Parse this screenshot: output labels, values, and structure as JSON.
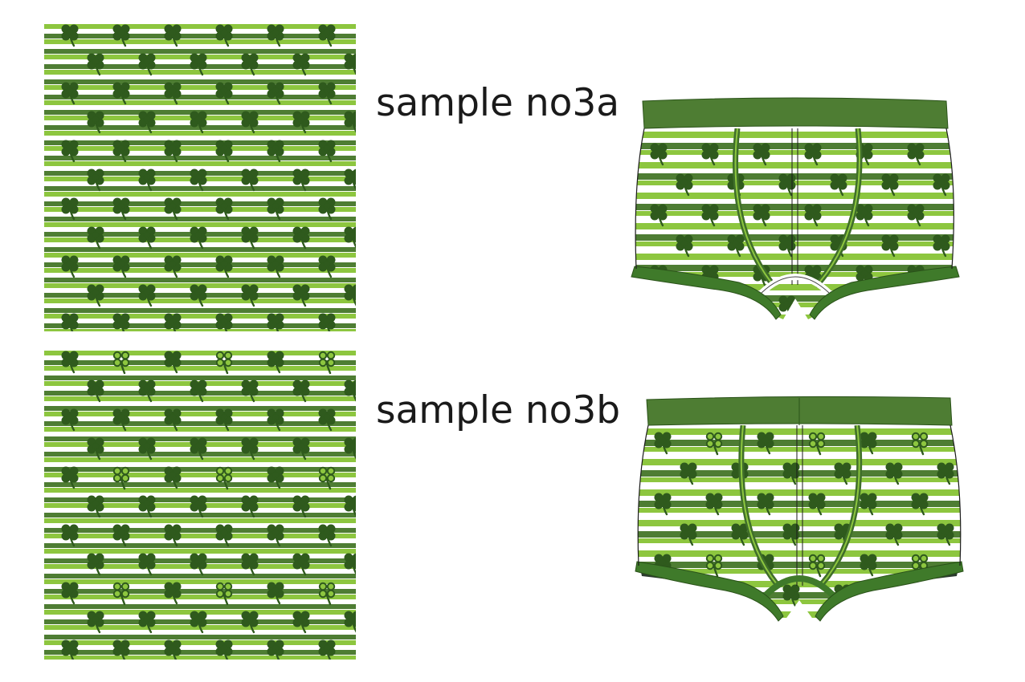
{
  "samples": [
    {
      "label": "sample no3a",
      "pattern": "shamrock-stripes-solid",
      "icons": [
        "shamrock-icon"
      ]
    },
    {
      "label": "sample no3b",
      "pattern": "shamrock-stripes-outline",
      "icons": [
        "shamrock-icon",
        "shamrock-outline-icon"
      ]
    }
  ],
  "colors": {
    "stripe_light": "#8dc63f",
    "stripe_dark": "#4e7d33",
    "shamrock": "#2f5a1d",
    "waistband": "#4e7d33",
    "leg_band": "#3f7a2a",
    "background": "#ffffff"
  }
}
